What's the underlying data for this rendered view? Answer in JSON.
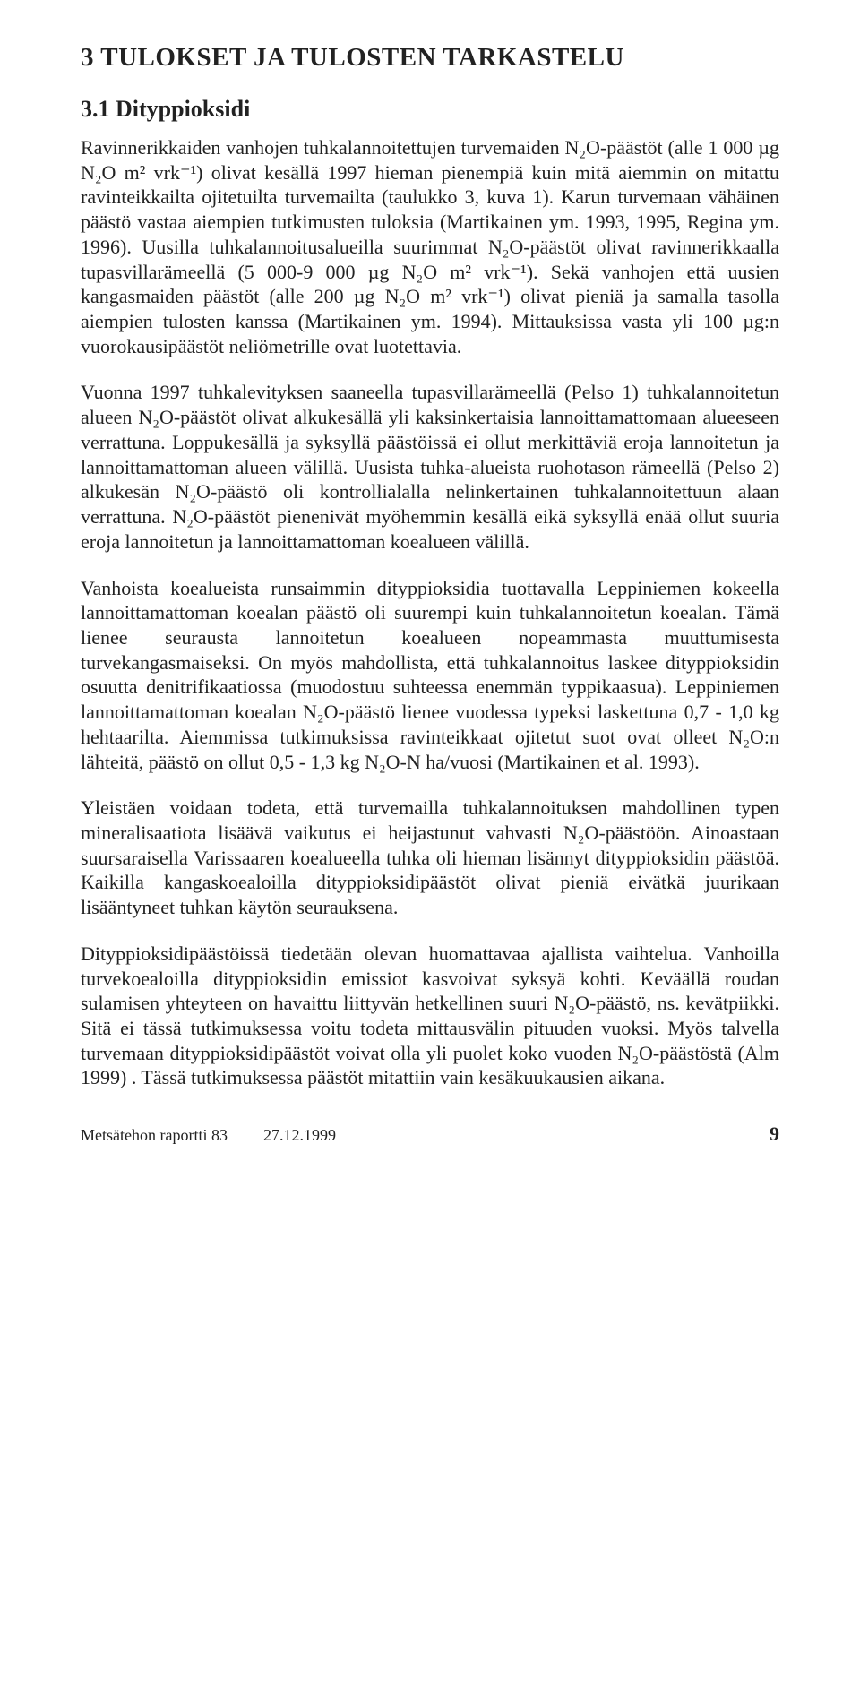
{
  "heading_main": "3 TULOKSET  JA TULOSTEN TARKASTELU",
  "heading_sub": "3.1 Dityppioksidi",
  "paragraphs": {
    "p1": "Ravinnerikkaiden vanhojen tuhkalannoitettujen turvemaiden N₂O-päästöt (alle 1 000 µg N₂O m² vrk⁻¹) olivat kesällä 1997 hieman pienempiä kuin mitä aiemmin on mitattu ravinteikkailta ojitetuilta turvemailta (taulukko 3, kuva 1). Karun turvemaan vähäinen päästö vastaa aiempien tutkimusten tuloksia (Martikainen ym. 1993, 1995, Regina ym. 1996). Uusilla tuhkalannoitus­alueilla suurimmat N₂O-päästöt olivat  ravinnerikkaalla tupasvillarämeellä (5 000-9 000 µg N₂O m² vrk⁻¹). Sekä vanhojen että uusien kangasmaiden päästöt (alle 200 µg N₂O m² vrk⁻¹) olivat  pieniä ja samalla tasolla aiempien tulosten kanssa (Martikainen ym. 1994). Mittauksissa vasta yli 100 µg:n vuorokausipäästöt neliömetrille ovat luotettavia.",
    "p2": "Vuonna 1997 tuhkalevityksen saaneella tupasvillarämeellä (Pelso 1) tuhka­lannoitetun alueen N₂O-päästöt olivat alkukesällä yli kaksinkertaisia lannoit­tamattomaan alueeseen verrattuna. Loppukesällä ja syksyllä päästöissä ei ollut merkittäviä eroja lannoitetun ja lannoittamattoman alueen välillä. Uusista tuhka-alueista ruohotason rämeellä (Pelso 2) alkukesän N₂O-päästö oli kont­rollialalla nelinkertainen tuhkalannoitettuun alaan verrattuna. N₂O-päästöt pienenivät myöhemmin kesällä eikä syksyllä  enää ollut suuria eroja lannoitetun ja lannoittamattoman koealueen välillä.",
    "p3": "Vanhoista koealueista runsaimmin dityppioksidia tuottavalla Leppiniemen kokeella lannoittamattoman koealan päästö oli suurempi kuin tuhkalannoitetun koealan. Tämä lienee seurausta lannoitetun koealueen nopeammasta muuttumisesta turvekangasmaiseksi. On myös mahdollista, että tuhkalannoitus laskee dityppioksidin osuutta denitrifikaatiossa (muodostuu suhteessa enemmän typpikaasua). Leppiniemen lannoittamattoman koealan N₂O-päästö lienee vuodessa  typeksi laskettuna 0,7 - 1,0 kg hehtaarilta. Aiemmissa tutkimuksissa ravinteikkaat ojitetut suot ovat olleet N₂O:n lähteitä,  päästö on ollut 0,5 - 1,3 kg N₂O-N ha/vuosi (Martikainen et al. 1993).",
    "p4": "Yleistäen voidaan todeta, että turvemailla tuhkalannoituksen mahdollinen typen mineralisaatiota lisäävä vaikutus ei heijastunut vahvasti N₂O-päästöön. Ainoastaan suursaraisella Varissaaren koealueella tuhka oli hieman lisännyt dityppioksidin päästöä. Kaikilla kangaskoealoilla dityppioksidipäästöt olivat pieniä eivätkä juurikaan  lisääntyneet tuhkan käytön seurauksena.",
    "p5": "Dityppioksidipäästöissä tiedetään olevan huomattavaa ajallista vaihtelua. Vanhoilla turvekoealoilla dityppioksidin emissiot  kasvoivat syksyä kohti. Keväällä roudan sulamisen yhteyteen on havaittu liittyvän hetkellinen suuri N₂O-päästö, ns. kevätpiikki.  Sitä ei tässä tutkimuksessa voitu todeta mittausvälin pituuden vuoksi. Myös talvella turvemaan dityppioksidipäästöt voivat olla  yli puolet koko vuoden N₂O-päästöstä (Alm 1999) . Tässä tutkimuksessa päästöt mitattiin vain kesäkuukausien aikana."
  },
  "footer": {
    "report": "Metsätehon raportti 83",
    "date": "27.12.1999",
    "pagenum": "9"
  }
}
